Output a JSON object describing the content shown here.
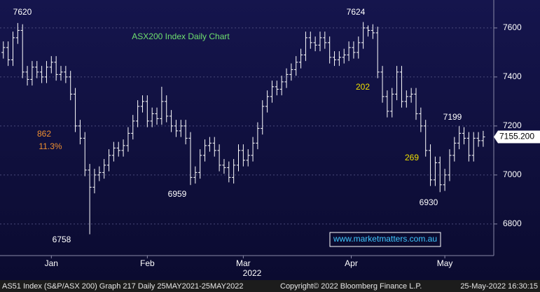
{
  "chart_data": {
    "type": "ohlc",
    "title": "ASX200 Index Daily Chart",
    "xlabel": "2022",
    "color": "#ffffff",
    "open": [
      7500,
      7520,
      7470,
      7560,
      7590,
      7420,
      7390,
      7440,
      7420,
      7400,
      7440,
      7460,
      7410,
      7420,
      7400,
      7330,
      7200,
      7150,
      7020,
      6950,
      7000,
      7010,
      7040,
      7080,
      7110,
      7100,
      7120,
      7170,
      7220,
      7280,
      7300,
      7220,
      7250,
      7230,
      7300,
      7240,
      7200,
      7180,
      7200,
      7150,
      6990,
      7010,
      7080,
      7120,
      7130,
      7100,
      7040,
      7030,
      6990,
      7040,
      7100,
      7060,
      7080,
      7130,
      7190,
      7280,
      7320,
      7360,
      7350,
      7380,
      7410,
      7430,
      7460,
      7490,
      7560,
      7540,
      7530,
      7560,
      7540,
      7480,
      7470,
      7480,
      7490,
      7520,
      7500,
      7540,
      7600,
      7590,
      7580,
      7420,
      7320,
      7260,
      7330,
      7420,
      7300,
      7320,
      7330,
      7250,
      7200,
      7100,
      6980,
      7050,
      6960,
      7000,
      7080,
      7130,
      7170,
      7150,
      7080,
      7150,
      7140
    ],
    "high": [
      7545,
      7545,
      7585,
      7620,
      7615,
      7445,
      7465,
      7465,
      7445,
      7465,
      7485,
      7485,
      7445,
      7445,
      7425,
      7355,
      7225,
      7175,
      7045,
      7025,
      7035,
      7065,
      7105,
      7135,
      7135,
      7145,
      7195,
      7245,
      7305,
      7325,
      7325,
      7275,
      7275,
      7360,
      7325,
      7265,
      7225,
      7225,
      7225,
      7175,
      7035,
      7105,
      7145,
      7155,
      7155,
      7125,
      7065,
      7055,
      7065,
      7125,
      7125,
      7105,
      7155,
      7215,
      7305,
      7345,
      7385,
      7385,
      7405,
      7435,
      7455,
      7485,
      7515,
      7585,
      7585,
      7565,
      7585,
      7585,
      7565,
      7505,
      7505,
      7515,
      7545,
      7545,
      7565,
      7624,
      7610,
      7615,
      7605,
      7445,
      7345,
      7355,
      7445,
      7445,
      7345,
      7355,
      7355,
      7275,
      7225,
      7125,
      7075,
      7075,
      7025,
      7105,
      7155,
      7199,
      7195,
      7175,
      7175,
      7175,
      7180
    ],
    "low": [
      7475,
      7445,
      7445,
      7535,
      7395,
      7365,
      7365,
      7395,
      7375,
      7375,
      7415,
      7385,
      7385,
      7375,
      7305,
      7175,
      7125,
      6995,
      6758,
      6925,
      6975,
      6985,
      7015,
      7055,
      7075,
      7075,
      7095,
      7145,
      7195,
      7255,
      7195,
      7195,
      7205,
      7205,
      7215,
      7175,
      7155,
      7155,
      7125,
      6959,
      6965,
      6985,
      7055,
      7095,
      7075,
      7015,
      7005,
      6970,
      6965,
      7015,
      7035,
      7035,
      7055,
      7105,
      7165,
      7255,
      7295,
      7325,
      7325,
      7355,
      7385,
      7405,
      7435,
      7465,
      7515,
      7505,
      7505,
      7515,
      7455,
      7445,
      7445,
      7455,
      7465,
      7475,
      7475,
      7515,
      7565,
      7555,
      7395,
      7295,
      7235,
      7235,
      7305,
      7275,
      7275,
      7295,
      7225,
      7175,
      7075,
      6955,
      6955,
      6930,
      6935,
      6975,
      7055,
      7105,
      7125,
      7055,
      7055,
      7115,
      7115
    ],
    "close": [
      7520,
      7470,
      7560,
      7590,
      7420,
      7390,
      7440,
      7420,
      7400,
      7440,
      7460,
      7410,
      7420,
      7400,
      7330,
      7200,
      7150,
      7020,
      6950,
      7000,
      7010,
      7040,
      7080,
      7110,
      7100,
      7120,
      7170,
      7220,
      7280,
      7300,
      7220,
      7250,
      7230,
      7300,
      7240,
      7200,
      7180,
      7200,
      7150,
      6990,
      7010,
      7080,
      7120,
      7130,
      7100,
      7040,
      7030,
      6990,
      7040,
      7100,
      7060,
      7080,
      7130,
      7190,
      7280,
      7320,
      7360,
      7350,
      7380,
      7410,
      7430,
      7460,
      7490,
      7560,
      7540,
      7530,
      7560,
      7540,
      7480,
      7470,
      7480,
      7490,
      7520,
      7500,
      7540,
      7600,
      7590,
      7580,
      7420,
      7320,
      7260,
      7330,
      7420,
      7300,
      7320,
      7330,
      7250,
      7200,
      7100,
      6980,
      7050,
      6960,
      7000,
      7080,
      7130,
      7170,
      7150,
      7080,
      7150,
      7140,
      7155.2
    ],
    "last_price": {
      "value": 7155.2,
      "label": "7155.200"
    },
    "xlim": [
      -0.7,
      102.2
    ],
    "xticks": [
      {
        "value": 10,
        "label": "Jan"
      },
      {
        "value": 30,
        "label": "Feb"
      },
      {
        "value": 50,
        "label": "Mar"
      },
      {
        "value": 72.5,
        "label": "Apr"
      },
      {
        "value": 92,
        "label": "May"
      }
    ],
    "ylim": [
      6671,
      7714
    ],
    "yticks": [
      6800,
      7000,
      7200,
      7400,
      7600
    ],
    "grid": true,
    "annotations": [
      "7620",
      "7624",
      "6758",
      "6959",
      "6930",
      "7199",
      "862",
      "11.3%",
      "202",
      "269"
    ],
    "watermark": "www.marketmatters.com.au",
    "footer": [
      "AS51 Index (S&P/ASX 200) Graph 217  Daily 25MAY2021-25MAY2022",
      "Copyright© 2022 Bloomberg Finance L.P.",
      "25-May-2022 16:30:15"
    ]
  }
}
